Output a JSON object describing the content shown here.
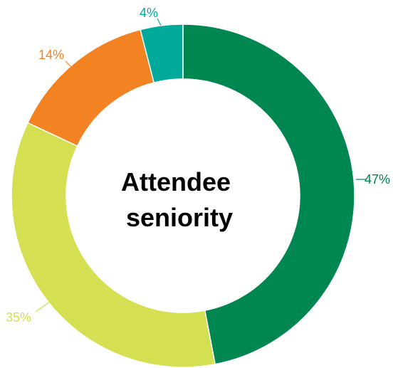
{
  "chart_data": {
    "type": "pie",
    "title": "Attendee seniority",
    "title_lines": [
      "Attendee",
      "seniority"
    ],
    "donut": true,
    "legend": "none",
    "slices": [
      {
        "label": "47%",
        "value": 47,
        "color": "#008651"
      },
      {
        "label": "35%",
        "value": 35,
        "color": "#d4df51"
      },
      {
        "label": "14%",
        "value": 14,
        "color": "#f38223"
      },
      {
        "label": "4%",
        "value": 4,
        "color": "#00a99a"
      }
    ]
  }
}
